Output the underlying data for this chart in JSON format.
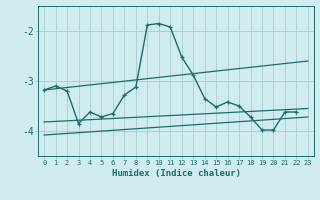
{
  "xlabel": "Humidex (Indice chaleur)",
  "xlim": [
    -0.5,
    23.5
  ],
  "ylim": [
    -4.5,
    -1.5
  ],
  "bg_color": "#d0ecee",
  "grid_color": "#a8cccc",
  "line_color": "#1a6e6a",
  "yticks": [
    -4,
    -3,
    -2
  ],
  "xticks": [
    0,
    1,
    2,
    3,
    4,
    5,
    6,
    7,
    8,
    9,
    10,
    11,
    12,
    13,
    14,
    15,
    16,
    17,
    18,
    19,
    20,
    21,
    22,
    23
  ],
  "lines": [
    {
      "x": [
        0,
        23
      ],
      "y": [
        -3.18,
        -2.6
      ],
      "marker": false,
      "lw": 0.9
    },
    {
      "x": [
        0,
        23
      ],
      "y": [
        -3.82,
        -3.55
      ],
      "marker": false,
      "lw": 0.9
    },
    {
      "x": [
        0,
        23
      ],
      "y": [
        -4.08,
        -3.72
      ],
      "marker": false,
      "lw": 0.9
    },
    {
      "x": [
        0,
        1,
        2,
        3,
        4,
        5,
        6,
        7,
        8,
        9,
        10,
        11,
        12,
        13,
        14,
        15,
        16,
        17,
        18,
        19,
        20,
        21,
        22
      ],
      "y": [
        -3.18,
        -3.1,
        -3.2,
        -3.85,
        -3.62,
        -3.72,
        -3.65,
        -3.28,
        -3.12,
        -1.88,
        -1.85,
        -1.92,
        -2.52,
        -2.88,
        -3.35,
        -3.52,
        -3.42,
        -3.5,
        -3.72,
        -3.98,
        -3.98,
        -3.62,
        -3.62
      ],
      "marker": true,
      "lw": 1.0
    }
  ]
}
